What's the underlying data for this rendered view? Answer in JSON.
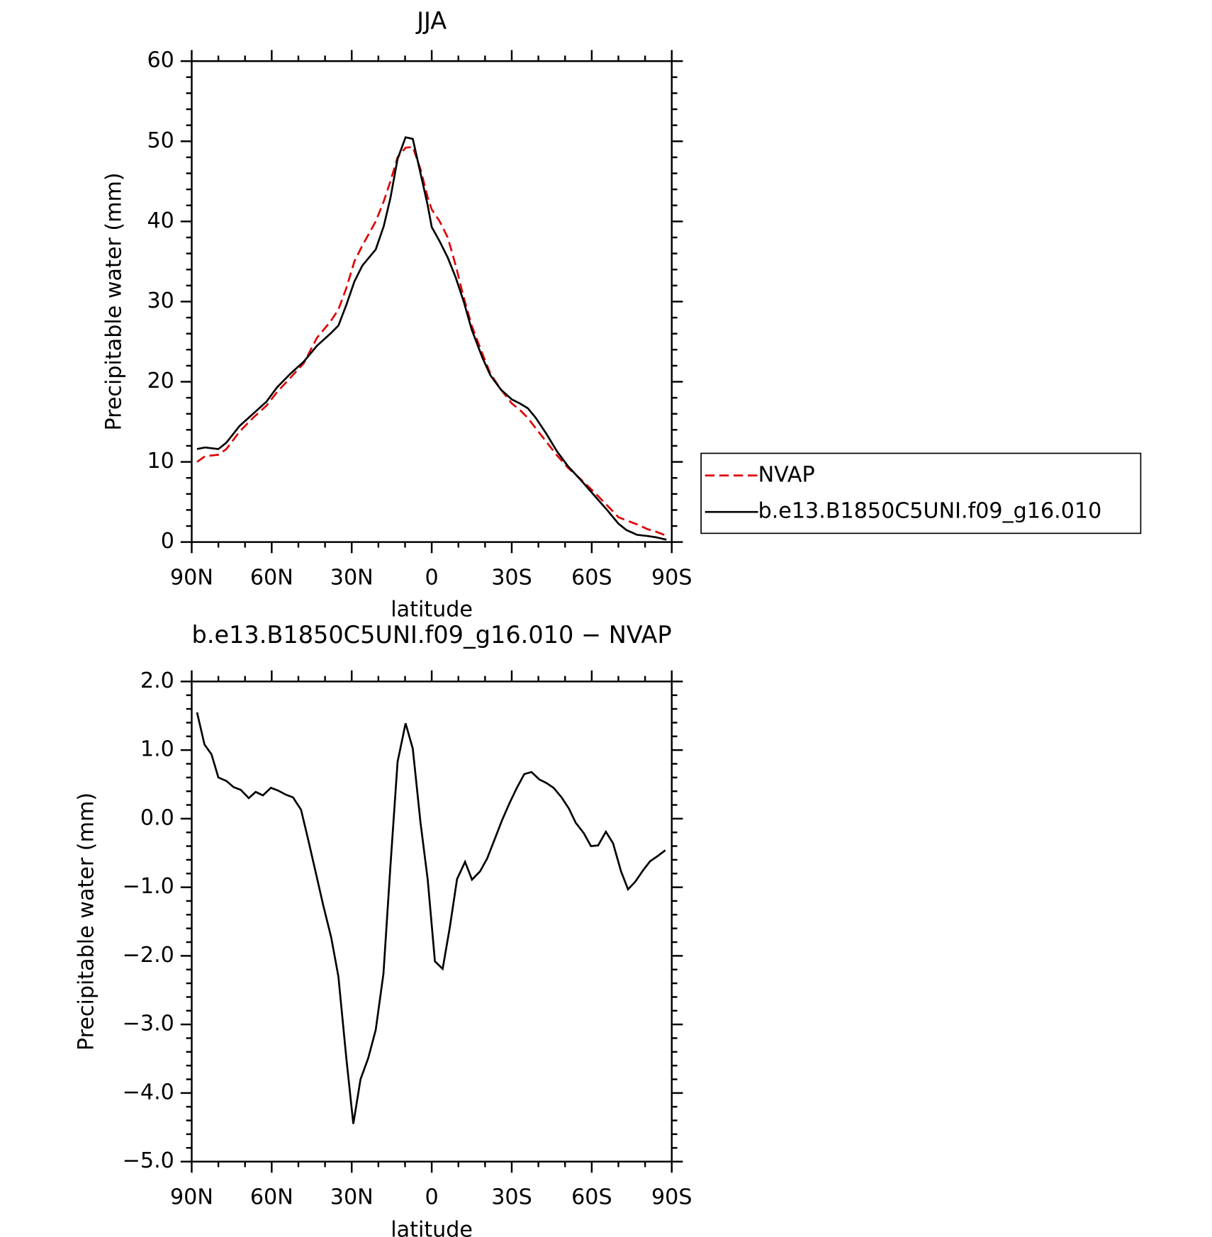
{
  "chart_data": [
    {
      "type": "line",
      "title": "JJA",
      "xlabel": "latitude",
      "ylabel": "Precipitable water (mm)",
      "x": [
        88,
        85,
        80,
        77,
        72,
        67,
        62,
        58,
        53,
        48,
        43,
        38,
        35,
        32,
        29,
        26,
        21,
        18,
        15.5,
        12.8,
        9.8,
        7.1,
        4.2,
        1.5,
        0,
        -3,
        -6,
        -9,
        -12,
        -15,
        -19,
        -22,
        -26,
        -30,
        -33,
        -36,
        -39,
        -43,
        -47,
        -51,
        -56,
        -61,
        -66,
        -70,
        -73,
        -77,
        -81,
        -84,
        -88
      ],
      "series": [
        {
          "name": "NVAP",
          "color": "#e00000",
          "line_style": "dashed",
          "values": [
            10,
            10.7,
            10.9,
            11.6,
            13.8,
            15.5,
            17,
            18.7,
            20.5,
            22.3,
            25.5,
            27.5,
            29,
            31.7,
            35,
            37,
            40,
            42.5,
            45,
            48,
            49.2,
            49.3,
            46.5,
            43,
            41.5,
            40,
            38,
            34.5,
            30.5,
            27,
            23.5,
            21,
            19,
            17.3,
            16.5,
            15.5,
            14.2,
            12.5,
            10.8,
            9.3,
            7.8,
            6.2,
            4.5,
            3.1,
            2.7,
            2.2,
            1.6,
            1.3,
            0.8
          ]
        },
        {
          "name": "b.e13.B1850C5UNI.f09_g16.010",
          "color": "#000000",
          "line_style": "solid",
          "values": [
            11.6,
            11.8,
            11.6,
            12.4,
            14.5,
            16,
            17.5,
            19.3,
            21,
            22.5,
            24.5,
            26,
            27,
            29.6,
            32.5,
            34.5,
            36.5,
            39.4,
            42.9,
            47.8,
            50.5,
            50.3,
            46,
            42,
            39.3,
            37.5,
            35.5,
            33,
            30,
            26.5,
            23,
            20.8,
            19,
            17.8,
            17.3,
            16.7,
            15.5,
            13.5,
            11.3,
            9.5,
            7.7,
            5.8,
            3.9,
            2.3,
            1.5,
            0.9,
            0.75,
            0.6,
            0.3
          ]
        }
      ],
      "xlim": [
        90,
        -90
      ],
      "xticks": [
        {
          "value": 90,
          "label": "90N"
        },
        {
          "value": 60,
          "label": "60N"
        },
        {
          "value": 30,
          "label": "30N"
        },
        0,
        {
          "value": -30,
          "label": "30S"
        },
        {
          "value": -60,
          "label": "60S"
        },
        {
          "value": -90,
          "label": "90S"
        }
      ],
      "ylim": [
        0,
        60
      ],
      "yticks": [
        0,
        10,
        20,
        30,
        40,
        50,
        60
      ],
      "legend": "outside-right"
    },
    {
      "type": "line",
      "title": "b.e13.B1850C5UNI.f09_g16.010 − NVAP",
      "xlabel": "latitude",
      "ylabel": "Precipitable water (mm)",
      "x": [
        88,
        85.2,
        82.6,
        80,
        77,
        74.3,
        71.6,
        68.6,
        66,
        63.3,
        60.3,
        57.6,
        54.7,
        52,
        49,
        46.3,
        43.4,
        40.7,
        37.7,
        35,
        32,
        29.4,
        26.7,
        23.8,
        21,
        18.1,
        15.5,
        12.8,
        9.8,
        7.1,
        4.2,
        1.5,
        -1.2,
        -4.1,
        -6.8,
        -9.5,
        -12.5,
        -15.1,
        -18.1,
        -20.8,
        -23.5,
        -26.4,
        -29.1,
        -31.8,
        -34.7,
        -37.4,
        -40.4,
        -43,
        -45.7,
        -48.7,
        -51.4,
        -54,
        -57,
        -59.7,
        -62.4,
        -65.3,
        -68,
        -71,
        -73.6,
        -76.3,
        -79.3,
        -81.9,
        -84.9,
        -87.6
      ],
      "series": [
        {
          "color": "#000000",
          "line_style": "solid",
          "values": [
            1.55,
            1.08,
            0.94,
            0.6,
            0.55,
            0.46,
            0.42,
            0.3,
            0.39,
            0.34,
            0.45,
            0.41,
            0.35,
            0.31,
            0.13,
            -0.31,
            -0.8,
            -1.26,
            -1.73,
            -2.3,
            -3.5,
            -4.45,
            -3.8,
            -3.49,
            -3.08,
            -2.26,
            -0.7,
            0.83,
            1.39,
            1.02,
            -0.06,
            -0.89,
            -2.08,
            -2.19,
            -1.58,
            -0.88,
            -0.63,
            -0.89,
            -0.77,
            -0.58,
            -0.31,
            -0.02,
            0.22,
            0.44,
            0.65,
            0.68,
            0.57,
            0.52,
            0.45,
            0.31,
            0.15,
            -0.06,
            -0.21,
            -0.4,
            -0.39,
            -0.19,
            -0.36,
            -0.77,
            -1.03,
            -0.92,
            -0.75,
            -0.62,
            -0.54,
            -0.46
          ]
        }
      ],
      "xlim": [
        90,
        -90
      ],
      "xticks": [
        {
          "value": 90,
          "label": "90N"
        },
        {
          "value": 60,
          "label": "60N"
        },
        {
          "value": 30,
          "label": "30N"
        },
        0,
        {
          "value": -30,
          "label": "30S"
        },
        {
          "value": -60,
          "label": "60S"
        },
        {
          "value": -90,
          "label": "90S"
        }
      ],
      "ylim": [
        -5,
        2
      ],
      "yticks": [
        {
          "value": -5,
          "label": "−5.0"
        },
        {
          "value": -4,
          "label": "−4.0"
        },
        {
          "value": -3,
          "label": "−3.0"
        },
        {
          "value": -2,
          "label": "−2.0"
        },
        {
          "value": -1,
          "label": "−1.0"
        },
        {
          "value": 0,
          "label": "0.0"
        },
        {
          "value": 1,
          "label": "1.0"
        },
        {
          "value": 2,
          "label": "2.0"
        }
      ]
    }
  ]
}
